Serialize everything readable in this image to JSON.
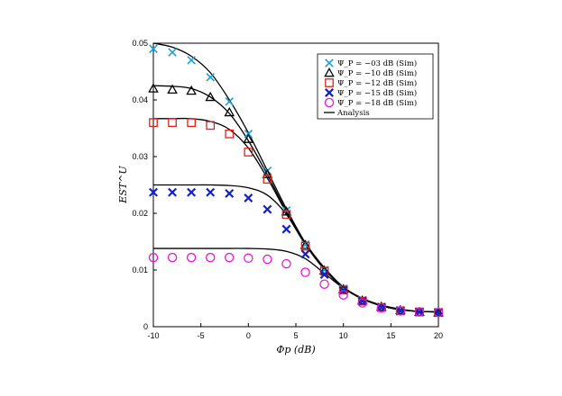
{
  "chart_data": {
    "type": "line",
    "title": "",
    "xlabel": "Φp (dB)",
    "ylabel": "EST^U",
    "xlim": [
      -10,
      20
    ],
    "ylim": [
      0,
      0.05
    ],
    "xticks": [
      -10,
      -5,
      0,
      5,
      10,
      15,
      20
    ],
    "xtick_labels": [
      "-10",
      "-5",
      "0",
      "5",
      "10",
      "15",
      "20"
    ],
    "yticks": [
      0,
      0.01,
      0.02,
      0.03,
      0.04,
      0.05
    ],
    "ytick_labels": [
      "0",
      "0.01",
      "0.02",
      "0.03",
      "0.04",
      "0.05"
    ],
    "grid": false,
    "legend_position": "top-right",
    "x": [
      -10,
      -8,
      -6,
      -4,
      -2,
      0,
      2,
      4,
      6,
      8,
      10,
      12,
      14,
      16,
      18,
      20
    ],
    "series": [
      {
        "name": "Ψ_P = −03 dB (Sim)",
        "legend_label": "Ψ_P = −03 dB (Sim)",
        "marker": "x",
        "color": "#1ca0d4",
        "values": [
          0.049,
          0.0484,
          0.047,
          0.044,
          0.0397,
          0.034,
          0.0275,
          0.0205,
          0.0145,
          0.01,
          0.0067,
          0.0047,
          0.0035,
          0.0029,
          0.0026,
          0.0025
        ],
        "analysis": [
          0.05,
          0.0493,
          0.0477,
          0.0448,
          0.04,
          0.0342,
          0.0275,
          0.0208,
          0.0148,
          0.0104,
          0.007,
          0.005,
          0.0038,
          0.0031,
          0.0027,
          0.0026
        ]
      },
      {
        "name": "Ψ_P = −10 dB (Sim)",
        "legend_label": "Ψ_P = −10 dB (Sim)",
        "marker": "triangle",
        "color": "#000000",
        "values": [
          0.042,
          0.0418,
          0.0416,
          0.0405,
          0.0378,
          0.0331,
          0.0269,
          0.0203,
          0.0144,
          0.0099,
          0.0066,
          0.0046,
          0.0035,
          0.0029,
          0.0026,
          0.0025
        ],
        "analysis": [
          0.0425,
          0.0424,
          0.042,
          0.0405,
          0.0376,
          0.0328,
          0.0268,
          0.0204,
          0.0146,
          0.0102,
          0.0069,
          0.0049,
          0.0037,
          0.003,
          0.0027,
          0.0026
        ]
      },
      {
        "name": "Ψ_P = −12 dB (Sim)",
        "legend_label": "Ψ_P = −12 dB (Sim)",
        "marker": "square",
        "color": "#e0201a",
        "values": [
          0.036,
          0.036,
          0.036,
          0.0355,
          0.034,
          0.0308,
          0.026,
          0.0198,
          0.0142,
          0.0098,
          0.0065,
          0.0045,
          0.0034,
          0.0028,
          0.0026,
          0.0025
        ],
        "analysis": [
          0.0367,
          0.0367,
          0.0367,
          0.0362,
          0.0348,
          0.0315,
          0.0262,
          0.0201,
          0.0145,
          0.0101,
          0.0069,
          0.0049,
          0.0037,
          0.003,
          0.0027,
          0.0026
        ]
      },
      {
        "name": "Ψ_P = −15 dB (Sim)",
        "legend_label": "Ψ_P = −15 dB (Sim)",
        "marker": "x-bold",
        "color": "#1420c8",
        "values": [
          0.0237,
          0.0237,
          0.0237,
          0.0237,
          0.0235,
          0.0227,
          0.0207,
          0.0172,
          0.0128,
          0.0092,
          0.0064,
          0.0045,
          0.0034,
          0.0028,
          0.0026,
          0.0025
        ],
        "analysis": [
          0.025,
          0.025,
          0.025,
          0.025,
          0.0249,
          0.0245,
          0.0232,
          0.0198,
          0.0145,
          0.0101,
          0.0069,
          0.0049,
          0.0037,
          0.003,
          0.0027,
          0.0026
        ]
      },
      {
        "name": "Ψ_P = −18 dB (Sim)",
        "legend_label": "Ψ_P = −18 dB (Sim)",
        "marker": "circle",
        "color": "#e619d6",
        "values": [
          0.0122,
          0.0122,
          0.0122,
          0.0122,
          0.0122,
          0.0121,
          0.0119,
          0.0111,
          0.0096,
          0.0075,
          0.0056,
          0.0042,
          0.0033,
          0.0028,
          0.0026,
          0.0025
        ],
        "analysis": [
          0.0138,
          0.0138,
          0.0138,
          0.0138,
          0.0138,
          0.0138,
          0.0137,
          0.0133,
          0.012,
          0.0094,
          0.0068,
          0.0049,
          0.0037,
          0.003,
          0.0027,
          0.0026
        ]
      }
    ],
    "analysis_legend": "Analysis",
    "analysis_color": "#000000"
  }
}
